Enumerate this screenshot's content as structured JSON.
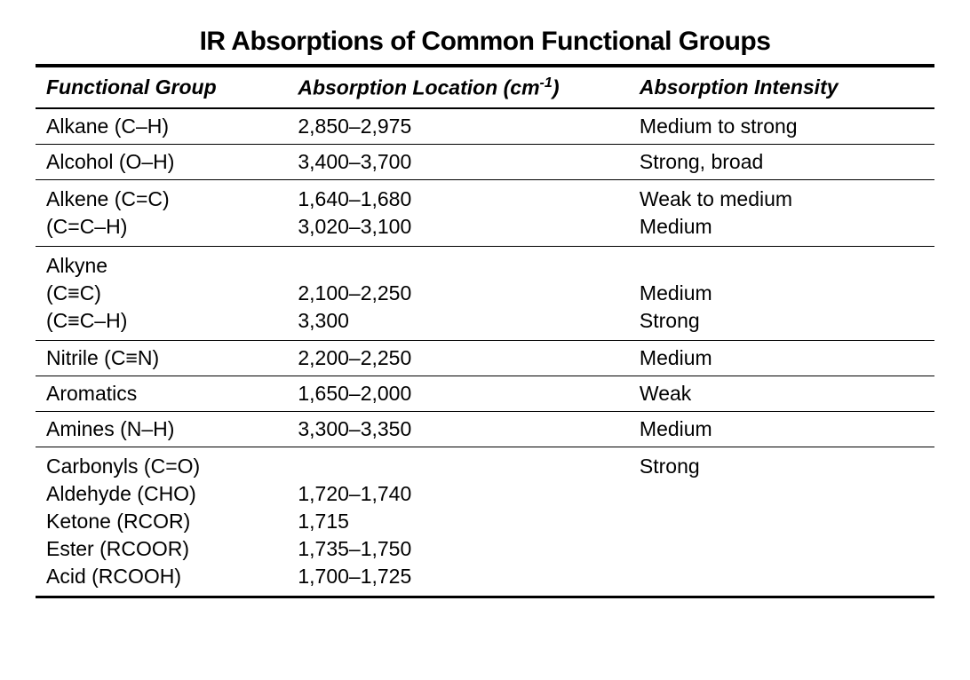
{
  "table": {
    "title": "IR Absorptions of Common Functional Groups",
    "headers": {
      "col1": "Functional Group",
      "col2_prefix": "Absorption Location (cm",
      "col2_suffix": ")",
      "col2_sup": "-1",
      "col3": "Absorption Intensity"
    },
    "rows": [
      {
        "group": "Alkane (C–H)",
        "location": "2,850–2,975",
        "intensity": "Medium to strong"
      },
      {
        "group": "Alcohol (O–H)",
        "location": "3,400–3,700",
        "intensity": "Strong, broad"
      },
      {
        "group": "Alkene (C=C)\n(C=C–H)",
        "location": "1,640–1,680\n3,020–3,100",
        "intensity": "Weak to medium\nMedium"
      },
      {
        "group": "Alkyne\n(C≡C)\n(C≡C–H)",
        "location": "\n2,100–2,250\n3,300",
        "intensity": "\nMedium\nStrong"
      },
      {
        "group": "Nitrile (C≡N)",
        "location": "2,200–2,250",
        "intensity": "Medium"
      },
      {
        "group": "Aromatics",
        "location": "1,650–2,000",
        "intensity": "Weak"
      },
      {
        "group": "Amines (N–H)",
        "location": "3,300–3,350",
        "intensity": "Medium"
      },
      {
        "group": "Carbonyls (C=O)\nAldehyde (CHO)\nKetone (RCOR)\nEster (RCOOR)\nAcid (RCOOH)",
        "location": "\n1,720–1,740\n1,715\n1,735–1,750\n1,700–1,725",
        "intensity": "Strong"
      }
    ],
    "styling": {
      "title_fontsize": 30,
      "header_fontsize": 23,
      "cell_fontsize": 23,
      "text_color": "#000000",
      "background_color": "#ffffff",
      "border_color": "#000000",
      "top_border_width": 4,
      "header_bottom_border_width": 2,
      "row_border_width": 1.5,
      "bottom_border_width": 3,
      "col_widths_pct": [
        28,
        38,
        34
      ]
    }
  }
}
